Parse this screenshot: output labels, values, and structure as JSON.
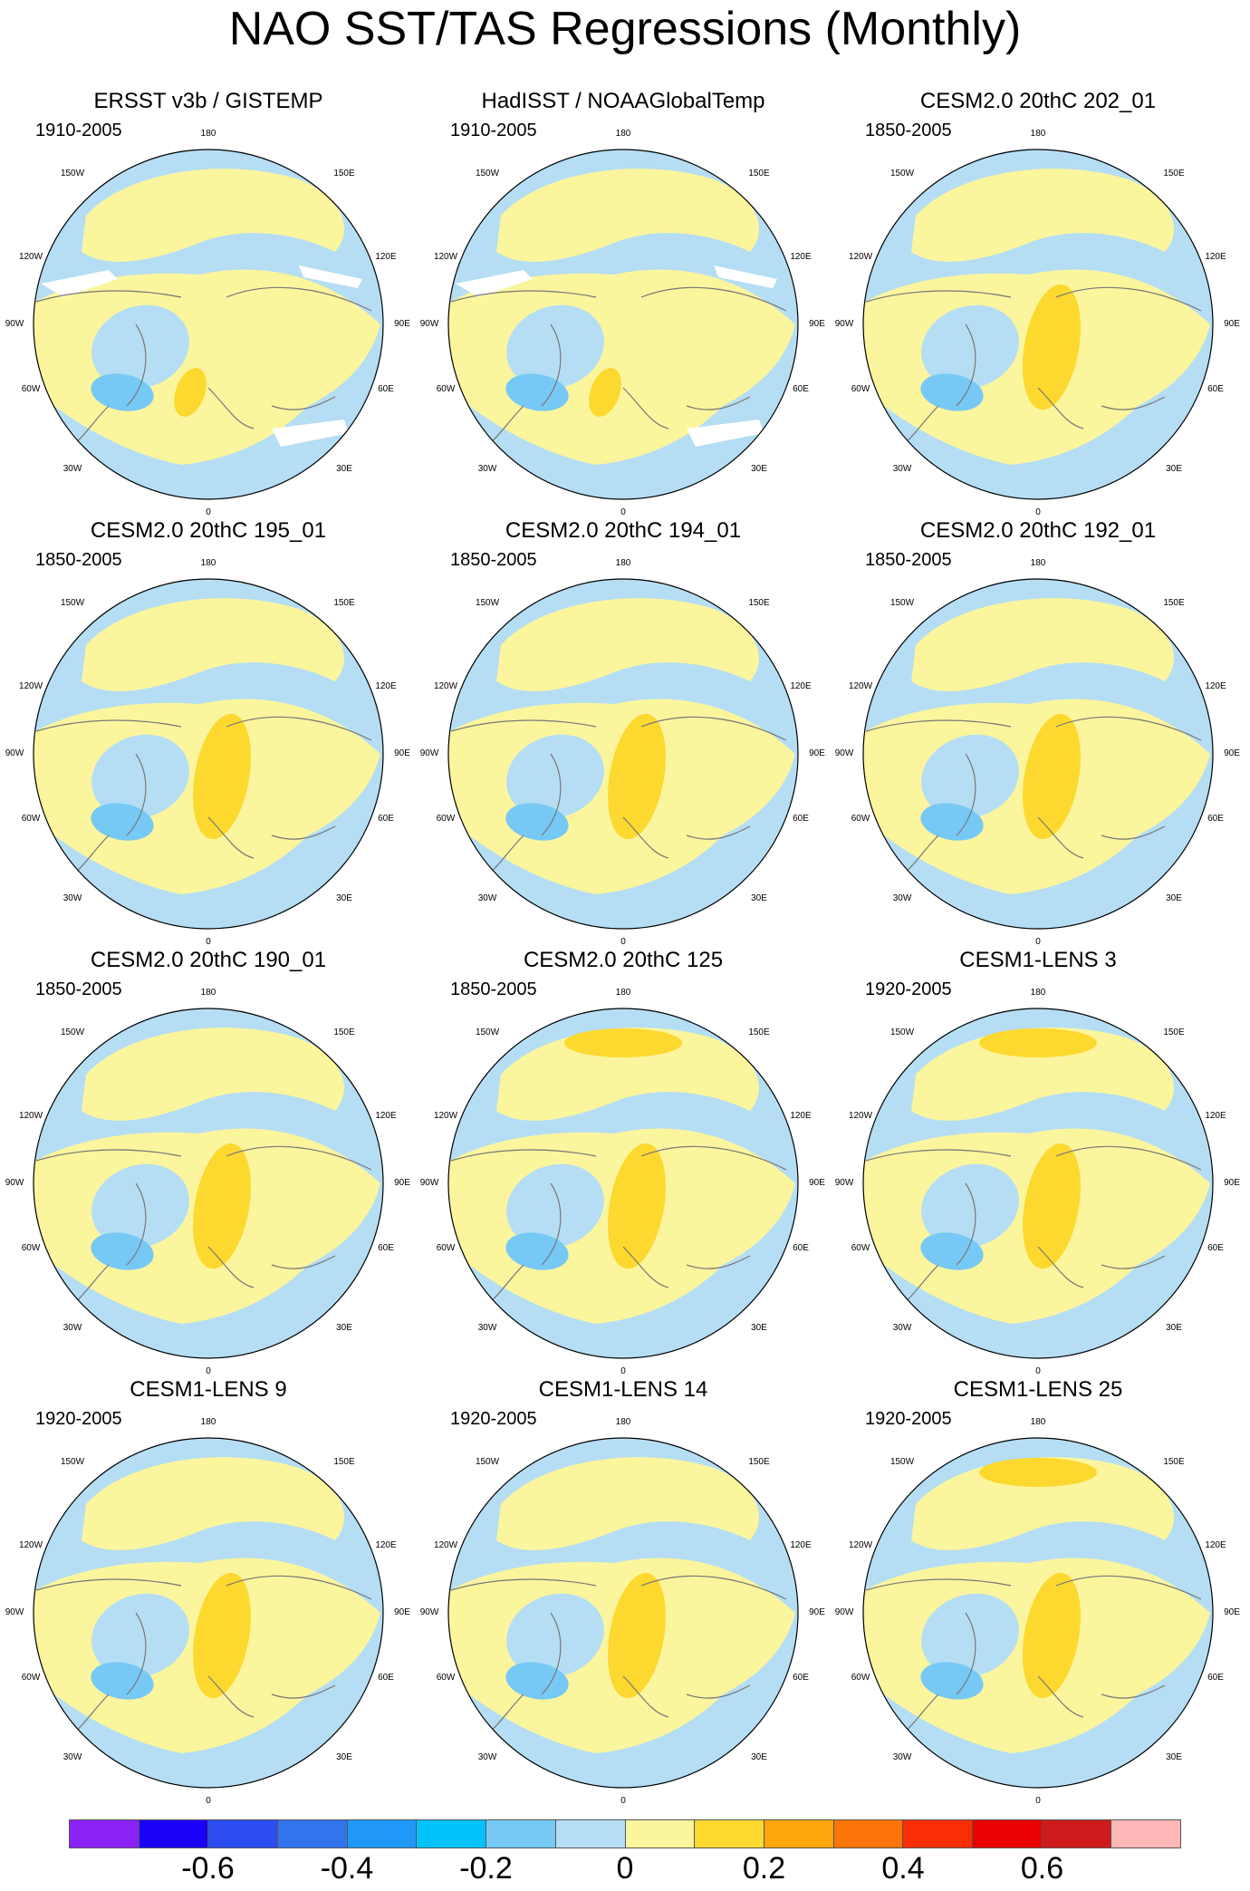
{
  "title": "NAO SST/TAS Regressions (Monthly)",
  "colors": {
    "palette": [
      "#8a21f5",
      "#1a00f8",
      "#2b4cf0",
      "#3274ec",
      "#1f98f8",
      "#00c3fb",
      "#77c9f5",
      "#b5def4",
      "#fbf59e",
      "#fdd82f",
      "#fda60b",
      "#fc7508",
      "#fb2d04",
      "#ea0000",
      "#cf1b1b",
      "#fdb7b7"
    ],
    "coast": "#777777",
    "missing": "#ffffff",
    "border": "#000000"
  },
  "panels": [
    {
      "title": "ERSST v3b / GISTEMP",
      "period": "1910-2005",
      "missing": true
    },
    {
      "title": "HadISST / NOAAGlobalTemp",
      "period": "1910-2005",
      "missing": true
    },
    {
      "title": "CESM2.0 20thC 202_01",
      "period": "1850-2005"
    },
    {
      "title": "CESM2.0 20thC 195_01",
      "period": "1850-2005"
    },
    {
      "title": "CESM2.0 20thC 194_01",
      "period": "1850-2005"
    },
    {
      "title": "CESM2.0 20thC 192_01",
      "period": "1850-2005"
    },
    {
      "title": "CESM2.0 20thC 190_01",
      "period": "1850-2005"
    },
    {
      "title": "CESM2.0 20thC 125",
      "period": "1850-2005",
      "pacific_patch": true
    },
    {
      "title": "CESM1-LENS 3",
      "period": "1920-2005",
      "pacific_patch": true
    },
    {
      "title": "CESM1-LENS 9",
      "period": "1920-2005"
    },
    {
      "title": "CESM1-LENS 14",
      "period": "1920-2005"
    },
    {
      "title": "CESM1-LENS 25",
      "period": "1920-2005",
      "pacific_patch": true
    }
  ],
  "longitude_labels": [
    "180",
    "150E",
    "120E",
    "90E",
    "60E",
    "30E",
    "0",
    "30W",
    "60W",
    "90W",
    "120W",
    "150W"
  ],
  "colorbar": {
    "labels": [
      {
        "text": "-0.6",
        "index": 2
      },
      {
        "text": "-0.4",
        "index": 4
      },
      {
        "text": "-0.2",
        "index": 6
      },
      {
        "text": "0",
        "index": 8
      },
      {
        "text": "0.2",
        "index": 10
      },
      {
        "text": "0.4",
        "index": 12
      },
      {
        "text": "0.6",
        "index": 14
      }
    ]
  }
}
